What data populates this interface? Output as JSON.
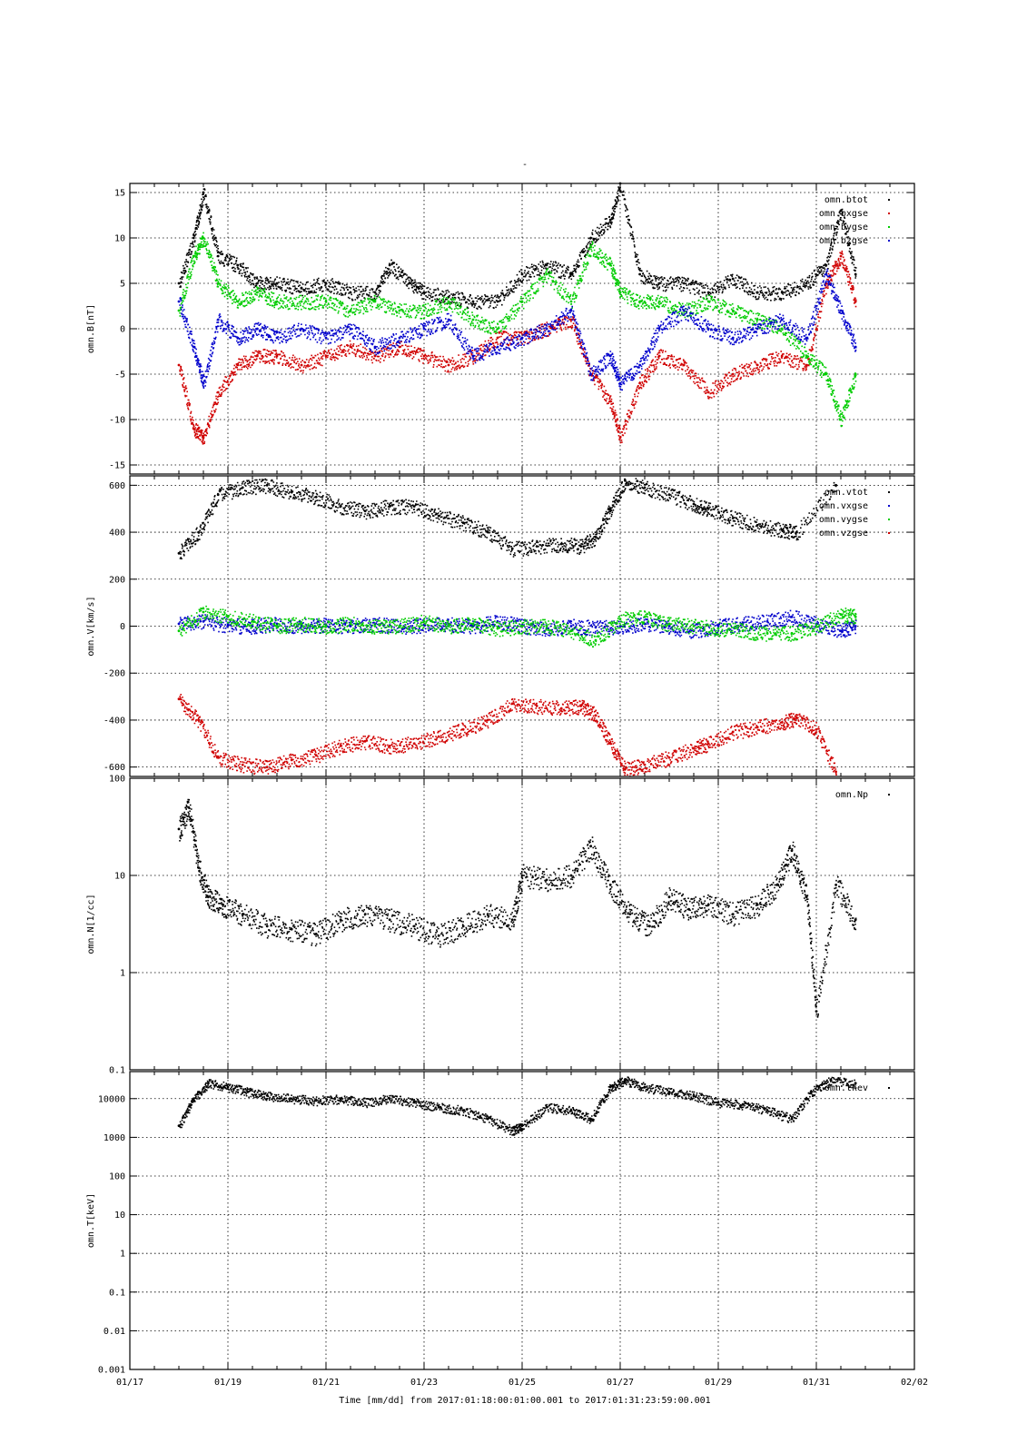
{
  "page": {
    "title": "-"
  },
  "x_axis": {
    "tick_labels": [
      "01/17",
      "01/19",
      "01/21",
      "01/23",
      "01/25",
      "01/27",
      "01/29",
      "01/31",
      "02/02"
    ],
    "tick_days": [
      17,
      19,
      21,
      23,
      25,
      27,
      29,
      31,
      33
    ],
    "range_days": [
      17,
      33
    ],
    "caption": "Time [mm/dd]  from 2017:01:18:00:01:00.001  to  2017:01:31:23:59:00.001"
  },
  "colors": {
    "black": "#000000",
    "red": "#d00000",
    "green": "#00cc00",
    "blue": "#0000cc"
  },
  "chart_data": [
    {
      "type": "scatter",
      "ylabel": "omn.B[nT]",
      "scale": "linear",
      "ylim": [
        -16,
        16
      ],
      "yticks": [
        15,
        10,
        5,
        0,
        -5,
        -10,
        -15
      ],
      "grid": true,
      "legend_position": "top-right",
      "series": [
        {
          "name": "omn.btot",
          "color": "#000000",
          "x": [
            18.0,
            18.3,
            18.5,
            18.8,
            19.2,
            19.6,
            20.0,
            20.5,
            21.0,
            21.5,
            22.0,
            22.3,
            22.7,
            23.0,
            23.5,
            24.0,
            24.5,
            25.0,
            25.5,
            26.0,
            26.4,
            26.8,
            27.0,
            27.4,
            27.8,
            28.3,
            28.8,
            29.3,
            29.8,
            30.3,
            30.8,
            31.2,
            31.5,
            31.8
          ],
          "y": [
            5,
            10,
            15,
            8,
            7,
            5,
            5,
            4.5,
            5,
            4,
            4,
            7,
            5,
            4,
            3.5,
            3,
            3,
            6,
            7,
            6,
            10,
            12,
            16,
            6,
            5,
            5,
            4,
            5.5,
            4,
            4,
            5,
            7,
            13,
            6
          ]
        },
        {
          "name": "omn.bxgse",
          "color": "#d00000",
          "x": [
            18.0,
            18.3,
            18.5,
            18.8,
            19.2,
            19.6,
            20.0,
            20.5,
            21.0,
            21.5,
            22.0,
            22.5,
            23.0,
            23.5,
            24.0,
            24.5,
            25.0,
            25.5,
            26.0,
            26.4,
            26.8,
            27.0,
            27.4,
            27.8,
            28.3,
            28.8,
            29.3,
            29.8,
            30.3,
            30.8,
            31.2,
            31.5,
            31.8
          ],
          "y": [
            -4,
            -11,
            -12,
            -7,
            -4,
            -3,
            -3,
            -4,
            -3,
            -2,
            -3,
            -2,
            -3,
            -4,
            -3,
            -1,
            -1,
            0,
            1,
            -5,
            -8,
            -12,
            -6,
            -3,
            -4,
            -7,
            -5,
            -4,
            -3,
            -4,
            5,
            8,
            3
          ]
        },
        {
          "name": "omn.bygse",
          "color": "#00cc00",
          "x": [
            18.0,
            18.3,
            18.5,
            18.8,
            19.2,
            19.6,
            20.0,
            20.5,
            21.0,
            21.5,
            22.0,
            22.5,
            23.0,
            23.5,
            24.0,
            24.5,
            25.0,
            25.5,
            26.0,
            26.4,
            26.8,
            27.0,
            27.4,
            27.8,
            28.3,
            28.8,
            29.3,
            29.8,
            30.3,
            30.8,
            31.2,
            31.5,
            31.8
          ],
          "y": [
            2,
            8,
            10,
            5,
            3,
            4,
            3,
            3,
            3,
            2,
            3,
            2,
            2,
            3,
            1,
            0,
            3,
            6,
            3,
            9,
            7,
            4,
            3,
            3,
            2,
            3,
            2,
            1,
            0,
            -3,
            -5,
            -10,
            -5
          ]
        },
        {
          "name": "omn.bzgse",
          "color": "#0000cc",
          "x": [
            18.0,
            18.3,
            18.5,
            18.8,
            19.2,
            19.6,
            20.0,
            20.5,
            21.0,
            21.5,
            22.0,
            22.5,
            23.0,
            23.5,
            24.0,
            24.5,
            25.0,
            25.5,
            26.0,
            26.4,
            26.8,
            27.0,
            27.4,
            27.8,
            28.3,
            28.8,
            29.3,
            29.8,
            30.3,
            30.8,
            31.2,
            31.5,
            31.8
          ],
          "y": [
            3,
            -2,
            -6,
            1,
            -1,
            0,
            -1,
            0,
            -1,
            0,
            -2,
            -1,
            0,
            1,
            -3,
            -2,
            -1,
            0,
            2,
            -5,
            -3,
            -6,
            -4,
            0,
            2,
            0,
            -1,
            0,
            1,
            -1,
            6,
            2,
            -2
          ]
        }
      ]
    },
    {
      "type": "scatter",
      "ylabel": "omn.V[km/s]",
      "scale": "linear",
      "ylim": [
        -640,
        640
      ],
      "yticks": [
        600,
        400,
        200,
        0,
        -200,
        -400,
        -600
      ],
      "grid": true,
      "legend_position": "top-right",
      "series": [
        {
          "name": "omn.vtot",
          "color": "#000000",
          "x": [
            18.0,
            18.4,
            18.8,
            19.3,
            19.8,
            20.3,
            20.8,
            21.3,
            21.8,
            22.3,
            22.8,
            23.3,
            23.8,
            24.3,
            24.8,
            25.3,
            25.8,
            26.2,
            26.5,
            26.8,
            27.1,
            27.5,
            28.0,
            28.5,
            28.8,
            29.3,
            29.8,
            30.3,
            30.6,
            31.4
          ],
          "y": [
            310,
            400,
            560,
            590,
            600,
            570,
            550,
            510,
            490,
            510,
            510,
            470,
            440,
            400,
            330,
            340,
            350,
            340,
            380,
            500,
            620,
            590,
            560,
            520,
            500,
            460,
            430,
            410,
            400,
            600
          ]
        },
        {
          "name": "omn.vxgse",
          "color": "#0000cc",
          "x": [
            18.0,
            18.5,
            19.0,
            19.5,
            20.0,
            20.5,
            21.0,
            21.5,
            22.0,
            22.5,
            23.0,
            23.5,
            24.0,
            24.5,
            25.0,
            25.5,
            26.0,
            26.5,
            27.0,
            27.5,
            28.0,
            28.5,
            29.0,
            29.5,
            30.0,
            30.5,
            31.0,
            31.5,
            31.8
          ],
          "y": [
            10,
            20,
            5,
            0,
            10,
            0,
            5,
            0,
            10,
            0,
            5,
            10,
            0,
            20,
            0,
            -10,
            0,
            -5,
            0,
            10,
            0,
            -20,
            0,
            10,
            20,
            40,
            10,
            -20,
            0
          ]
        },
        {
          "name": "omn.vygse",
          "color": "#00cc00",
          "x": [
            18.0,
            18.5,
            19.0,
            19.5,
            20.0,
            20.5,
            21.0,
            21.5,
            22.0,
            22.5,
            23.0,
            23.5,
            24.0,
            24.5,
            25.0,
            25.5,
            26.0,
            26.5,
            27.0,
            27.5,
            28.0,
            28.5,
            29.0,
            29.5,
            30.0,
            30.5,
            31.0,
            31.5,
            31.8
          ],
          "y": [
            -20,
            60,
            40,
            20,
            0,
            10,
            0,
            10,
            0,
            0,
            20,
            0,
            10,
            -10,
            0,
            0,
            -20,
            -60,
            30,
            40,
            10,
            0,
            -10,
            -20,
            -30,
            -30,
            0,
            50,
            40
          ]
        },
        {
          "name": "omn.vzgse",
          "color": "#d00000",
          "x": [
            18.0,
            18.4,
            18.8,
            19.3,
            19.8,
            20.3,
            20.8,
            21.3,
            21.8,
            22.3,
            22.8,
            23.3,
            23.8,
            24.3,
            24.8,
            25.3,
            25.8,
            26.2,
            26.5,
            26.8,
            27.1,
            27.5,
            28.0,
            28.5,
            28.8,
            29.3,
            29.8,
            30.3,
            30.6,
            31.0,
            31.4
          ],
          "y": [
            -310,
            -400,
            -560,
            -590,
            -600,
            -570,
            -550,
            -510,
            -490,
            -510,
            -500,
            -470,
            -440,
            -400,
            -330,
            -340,
            -350,
            -340,
            -380,
            -500,
            -610,
            -590,
            -560,
            -520,
            -500,
            -450,
            -430,
            -410,
            -390,
            -440,
            -620
          ]
        }
      ]
    },
    {
      "type": "scatter",
      "ylabel": "omn.N[1/cc]",
      "scale": "log",
      "ylim": [
        0.1,
        100
      ],
      "yticks": [
        100,
        10,
        1,
        0.1
      ],
      "ytick_labels": [
        "100",
        "10",
        "1",
        "0.1"
      ],
      "grid": true,
      "legend_position": "top-right",
      "series": [
        {
          "name": "omn.Np",
          "color": "#000000",
          "x": [
            18.0,
            18.2,
            18.4,
            18.6,
            18.9,
            19.3,
            19.8,
            20.3,
            20.8,
            21.3,
            21.8,
            22.3,
            22.8,
            23.3,
            23.8,
            24.3,
            24.8,
            25.0,
            25.5,
            26.0,
            26.4,
            26.8,
            27.2,
            27.6,
            28.0,
            28.4,
            28.8,
            29.3,
            29.8,
            30.2,
            30.5,
            30.8,
            31.0,
            31.4,
            31.8
          ],
          "y": [
            30,
            50,
            12,
            6,
            5,
            4,
            3,
            2.8,
            2.5,
            3.5,
            4,
            3.5,
            3,
            2.4,
            3,
            4,
            3.5,
            10,
            9,
            10,
            20,
            8,
            4,
            3,
            6,
            4.5,
            5,
            4,
            5,
            8,
            18,
            6,
            0.4,
            8,
            3.5
          ]
        }
      ]
    },
    {
      "type": "scatter",
      "ylabel": "omn.T[keV]",
      "scale": "log",
      "ylim": [
        0.001,
        50000
      ],
      "yticks": [
        10000,
        1000,
        100,
        10,
        1,
        0.1,
        0.01,
        0.001
      ],
      "ytick_labels": [
        "10000",
        "1000",
        "100",
        "10",
        "1",
        "0.1",
        "0.01",
        "0.001"
      ],
      "grid": true,
      "legend_position": "top-right",
      "series": [
        {
          "name": "omn.tkev",
          "color": "#000000",
          "x": [
            18.0,
            18.3,
            18.6,
            19.0,
            19.4,
            19.8,
            20.3,
            20.8,
            21.3,
            21.8,
            22.3,
            22.8,
            23.3,
            23.8,
            24.3,
            24.8,
            25.0,
            25.5,
            26.0,
            26.4,
            26.8,
            27.1,
            27.5,
            28.0,
            28.5,
            29.0,
            29.5,
            30.0,
            30.5,
            30.9,
            31.3,
            31.8
          ],
          "y": [
            2000,
            10000,
            25000,
            20000,
            15000,
            12000,
            10000,
            9000,
            10000,
            8000,
            10000,
            8000,
            6000,
            5000,
            3000,
            1500,
            2000,
            6000,
            5000,
            3000,
            20000,
            30000,
            20000,
            15000,
            12000,
            8000,
            7000,
            5000,
            3000,
            15000,
            30000,
            25000
          ]
        }
      ]
    }
  ]
}
